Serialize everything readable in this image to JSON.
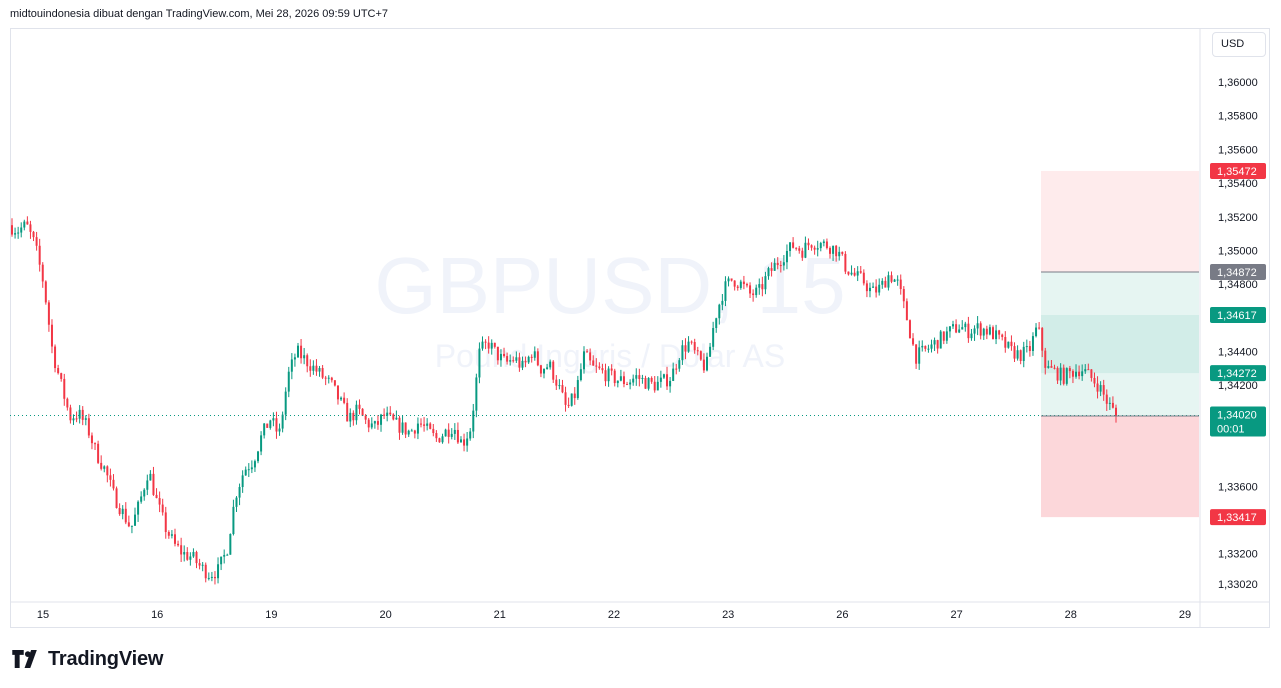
{
  "header": {
    "attribution": "midtouindonesia dibuat dengan TradingView.com, Mei 28, 2026 09:59 UTC+7"
  },
  "toolbar": {
    "currency": "USD"
  },
  "footer": {
    "brand": "TradingView"
  },
  "watermark": {
    "symbol": "GBPUSD, 15",
    "description": "Pound Inggris / Dolar AS"
  },
  "colors": {
    "up": "#089981",
    "down": "#f23645",
    "grey_tag": "#787b86",
    "target_zone": "#089981",
    "stop_zone": "#f23645"
  },
  "chart_data": {
    "type": "candlestick",
    "symbol": "GBPUSD",
    "interval": "15",
    "y_axis": {
      "ylim": [
        1.3295,
        1.3625
      ],
      "ticks": [
        "1,36000",
        "1,35800",
        "1,35600",
        "1,35400",
        "1,35200",
        "1,35000",
        "1,34800",
        "1,34400",
        "1,34200",
        "1,33600",
        "1,33200",
        "1,33020"
      ],
      "tick_values": [
        1.36,
        1.358,
        1.356,
        1.354,
        1.352,
        1.35,
        1.348,
        1.344,
        1.342,
        1.336,
        1.332,
        1.3302
      ]
    },
    "x_axis": {
      "labels": [
        "15",
        "16",
        "19",
        "20",
        "21",
        "22",
        "23",
        "26",
        "27",
        "28",
        "29"
      ]
    },
    "price_path": [
      [
        0,
        1.3515
      ],
      [
        1,
        1.3512
      ],
      [
        2,
        1.3515
      ],
      [
        3,
        1.3503
      ],
      [
        4,
        1.348
      ],
      [
        5,
        1.344
      ],
      [
        6,
        1.342
      ],
      [
        7,
        1.3401
      ],
      [
        8,
        1.3403
      ],
      [
        9,
        1.3395
      ],
      [
        10,
        1.338
      ],
      [
        11,
        1.337
      ],
      [
        12,
        1.3355
      ],
      [
        13,
        1.3345
      ],
      [
        14,
        1.3335
      ],
      [
        15,
        1.335
      ],
      [
        16,
        1.337
      ],
      [
        17,
        1.335
      ],
      [
        18,
        1.3335
      ],
      [
        19,
        1.3325
      ],
      [
        20,
        1.332
      ],
      [
        21,
        1.3318
      ],
      [
        22,
        1.3312
      ],
      [
        23,
        1.3308
      ],
      [
        24,
        1.331
      ],
      [
        25,
        1.3322
      ],
      [
        26,
        1.3355
      ],
      [
        27,
        1.337
      ],
      [
        28,
        1.3375
      ],
      [
        29,
        1.339
      ],
      [
        30,
        1.34
      ],
      [
        31,
        1.339
      ],
      [
        32,
        1.3425
      ],
      [
        33,
        1.344
      ],
      [
        34,
        1.3435
      ],
      [
        35,
        1.343
      ],
      [
        36,
        1.3425
      ],
      [
        37,
        1.342
      ],
      [
        38,
        1.341
      ],
      [
        39,
        1.34
      ],
      [
        40,
        1.3405
      ],
      [
        41,
        1.3398
      ],
      [
        42,
        1.3395
      ],
      [
        43,
        1.3402
      ],
      [
        44,
        1.3398
      ],
      [
        45,
        1.3395
      ],
      [
        46,
        1.3392
      ],
      [
        47,
        1.3398
      ],
      [
        48,
        1.3393
      ],
      [
        49,
        1.3388
      ],
      [
        50,
        1.3392
      ],
      [
        51,
        1.3396
      ],
      [
        52,
        1.3385
      ],
      [
        53,
        1.3395
      ],
      [
        54,
        1.344
      ],
      [
        55,
        1.3445
      ],
      [
        56,
        1.3438
      ],
      [
        57,
        1.3433
      ],
      [
        58,
        1.3436
      ],
      [
        59,
        1.343
      ],
      [
        60,
        1.344
      ],
      [
        61,
        1.343
      ],
      [
        62,
        1.3432
      ],
      [
        63,
        1.342
      ],
      [
        64,
        1.3405
      ],
      [
        65,
        1.3415
      ],
      [
        66,
        1.3438
      ],
      [
        67,
        1.343
      ],
      [
        68,
        1.3428
      ],
      [
        69,
        1.3425
      ],
      [
        70,
        1.3423
      ],
      [
        71,
        1.3422
      ],
      [
        72,
        1.3425
      ],
      [
        73,
        1.3422
      ],
      [
        74,
        1.342
      ],
      [
        75,
        1.3422
      ],
      [
        76,
        1.3425
      ],
      [
        77,
        1.344
      ],
      [
        78,
        1.3445
      ],
      [
        79,
        1.3436
      ],
      [
        80,
        1.343
      ],
      [
        81,
        1.346
      ],
      [
        82,
        1.3477
      ],
      [
        83,
        1.3483
      ],
      [
        84,
        1.348
      ],
      [
        85,
        1.3474
      ],
      [
        86,
        1.3475
      ],
      [
        87,
        1.3485
      ],
      [
        88,
        1.3492
      ],
      [
        89,
        1.3498
      ],
      [
        90,
        1.3503
      ],
      [
        91,
        1.35
      ],
      [
        92,
        1.3505
      ],
      [
        93,
        1.3504
      ],
      [
        94,
        1.3503
      ],
      [
        95,
        1.35
      ],
      [
        96,
        1.349
      ],
      [
        97,
        1.3485
      ],
      [
        98,
        1.3482
      ],
      [
        99,
        1.3475
      ],
      [
        100,
        1.3478
      ],
      [
        101,
        1.3486
      ],
      [
        102,
        1.348
      ],
      [
        103,
        1.346
      ],
      [
        104,
        1.3437
      ],
      [
        105,
        1.344
      ],
      [
        106,
        1.3444
      ],
      [
        107,
        1.3448
      ],
      [
        108,
        1.3452
      ],
      [
        109,
        1.3455
      ],
      [
        110,
        1.3452
      ],
      [
        111,
        1.3454
      ],
      [
        112,
        1.3453
      ],
      [
        113,
        1.345
      ],
      [
        114,
        1.3445
      ],
      [
        115,
        1.344
      ],
      [
        116,
        1.3438
      ],
      [
        117,
        1.344
      ],
      [
        118,
        1.3455
      ],
      [
        119,
        1.343
      ],
      [
        120,
        1.3428
      ],
      [
        121,
        1.3425
      ],
      [
        122,
        1.3428
      ],
      [
        123,
        1.343
      ],
      [
        124,
        1.3425
      ],
      [
        125,
        1.342
      ],
      [
        126,
        1.341
      ],
      [
        127,
        1.3402
      ]
    ],
    "price_path_index_range": [
      0,
      127
    ],
    "position_tool": {
      "target_top": 1.35472,
      "entry_alt": 1.34872,
      "entry_upper": 1.34617,
      "entry_lower": 1.34272,
      "stop_line": 1.34017,
      "stop_bottom": 1.33417
    },
    "current_price": {
      "value": 1.3402,
      "label": "1,34020",
      "countdown": "00:01"
    },
    "price_tags": [
      {
        "value": 1.35472,
        "label": "1,35472",
        "kind": "down"
      },
      {
        "value": 1.34872,
        "label": "1,34872",
        "kind": "grey"
      },
      {
        "value": 1.34617,
        "label": "1,34617",
        "kind": "up"
      },
      {
        "value": 1.34272,
        "label": "1,34272",
        "kind": "up"
      },
      {
        "value": 1.34017,
        "label": "1,34017",
        "kind": "grey"
      },
      {
        "value": 1.33417,
        "label": "1,33417",
        "kind": "down"
      }
    ],
    "grid": false
  }
}
